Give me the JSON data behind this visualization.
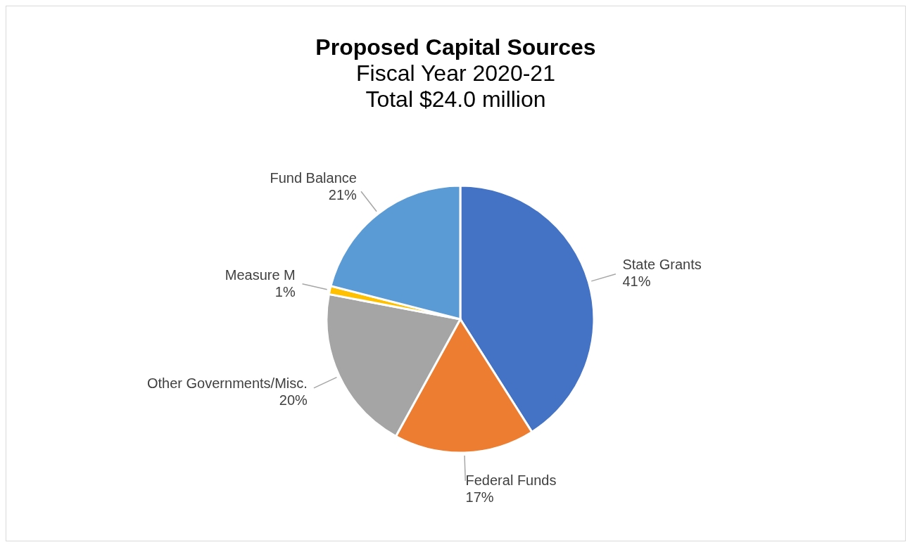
{
  "chart_data": {
    "type": "pie",
    "title": "Proposed Capital Sources",
    "subtitle": "Fiscal Year 2020-21",
    "annotations": [
      "Total $24.0 million"
    ],
    "categories": [
      "State Grants",
      "Federal Funds",
      "Other Governments/Misc.",
      "Measure M",
      "Fund Balance"
    ],
    "values": [
      41,
      17,
      20,
      1,
      21
    ],
    "value_labels": [
      "41%",
      "17%",
      "20%",
      "1%",
      "21%"
    ],
    "colors": [
      "#4472c4",
      "#ed7d31",
      "#a5a5a5",
      "#ffc000",
      "#5b9bd5"
    ]
  }
}
